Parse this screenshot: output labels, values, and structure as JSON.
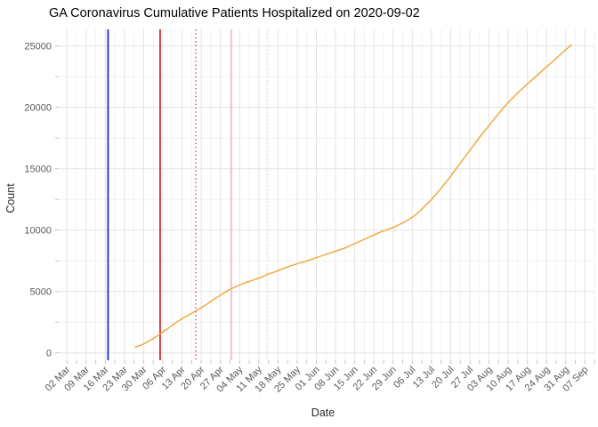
{
  "chart_data": {
    "type": "line",
    "title": "GA Coronavirus Cumulative Patients Hospitalized on 2020-09-02",
    "xlabel": "Date",
    "ylabel": "Count",
    "background_color": "#FFFFFF",
    "grid": {
      "on": true,
      "major_color": "#E3E3E3",
      "minor_color": "#F0F0F0"
    },
    "tick_mark_color": "#C4C4C4",
    "axis_text_color": "#595959",
    "legend": false,
    "ylim": [
      0,
      26300
    ],
    "y_ticks": [
      0,
      5000,
      10000,
      15000,
      20000,
      25000
    ],
    "y_minor_ticks": [
      2500,
      7500,
      12500,
      17500,
      22500
    ],
    "x_ticks": [
      {
        "date": "2020-03-02",
        "label": "02 Mar"
      },
      {
        "date": "2020-03-09",
        "label": "09 Mar"
      },
      {
        "date": "2020-03-16",
        "label": "16 Mar"
      },
      {
        "date": "2020-03-23",
        "label": "23 Mar"
      },
      {
        "date": "2020-03-30",
        "label": "30 Mar"
      },
      {
        "date": "2020-04-06",
        "label": "06 Apr"
      },
      {
        "date": "2020-04-13",
        "label": "13 Apr"
      },
      {
        "date": "2020-04-20",
        "label": "20 Apr"
      },
      {
        "date": "2020-04-27",
        "label": "27 Apr"
      },
      {
        "date": "2020-05-04",
        "label": "04 May"
      },
      {
        "date": "2020-05-11",
        "label": "11 May"
      },
      {
        "date": "2020-05-18",
        "label": "18 May"
      },
      {
        "date": "2020-05-25",
        "label": "25 May"
      },
      {
        "date": "2020-06-01",
        "label": "01 Jun"
      },
      {
        "date": "2020-06-08",
        "label": "08 Jun"
      },
      {
        "date": "2020-06-15",
        "label": "15 Jun"
      },
      {
        "date": "2020-06-22",
        "label": "22 Jun"
      },
      {
        "date": "2020-06-29",
        "label": "29 Jun"
      },
      {
        "date": "2020-07-06",
        "label": "06 Jul"
      },
      {
        "date": "2020-07-13",
        "label": "13 Jul"
      },
      {
        "date": "2020-07-20",
        "label": "20 Jul"
      },
      {
        "date": "2020-07-27",
        "label": "27 Jul"
      },
      {
        "date": "2020-08-03",
        "label": "03 Aug"
      },
      {
        "date": "2020-08-10",
        "label": "10 Aug"
      },
      {
        "date": "2020-08-17",
        "label": "17 Aug"
      },
      {
        "date": "2020-08-24",
        "label": "24 Aug"
      },
      {
        "date": "2020-08-31",
        "label": "31 Aug"
      },
      {
        "date": "2020-09-07",
        "label": "07 Sep"
      }
    ],
    "vlines": [
      {
        "date": "2020-03-17",
        "color": "#1C1CC8",
        "style": "solid",
        "name": "event-line-blue"
      },
      {
        "date": "2020-04-05",
        "color": "#CC2222",
        "style": "solid",
        "name": "event-line-red"
      },
      {
        "date": "2020-04-18",
        "color": "#CC3333",
        "style": "dotted",
        "name": "event-line-red-dotted"
      },
      {
        "date": "2020-05-01",
        "color": "#F5BCC8",
        "style": "solid",
        "name": "event-line-pink"
      },
      {
        "date": "2020-05-14",
        "color": "#F8CCD6",
        "style": "dotted",
        "name": "event-line-pink-dotted"
      }
    ],
    "series": [
      {
        "name": "cumulative-hospitalized",
        "color": "#F0A434",
        "points": [
          [
            "2020-03-27",
            470
          ],
          [
            "2020-03-29",
            620
          ],
          [
            "2020-03-31",
            860
          ],
          [
            "2020-04-02",
            1100
          ],
          [
            "2020-04-04",
            1390
          ],
          [
            "2020-04-06",
            1700
          ],
          [
            "2020-04-08",
            2010
          ],
          [
            "2020-04-10",
            2350
          ],
          [
            "2020-04-12",
            2650
          ],
          [
            "2020-04-14",
            2930
          ],
          [
            "2020-04-16",
            3160
          ],
          [
            "2020-04-18",
            3420
          ],
          [
            "2020-04-20",
            3690
          ],
          [
            "2020-04-22",
            3960
          ],
          [
            "2020-04-24",
            4280
          ],
          [
            "2020-04-26",
            4560
          ],
          [
            "2020-04-28",
            4840
          ],
          [
            "2020-04-30",
            5120
          ],
          [
            "2020-05-02",
            5330
          ],
          [
            "2020-05-04",
            5530
          ],
          [
            "2020-05-06",
            5710
          ],
          [
            "2020-05-08",
            5860
          ],
          [
            "2020-05-10",
            6020
          ],
          [
            "2020-05-12",
            6170
          ],
          [
            "2020-05-14",
            6390
          ],
          [
            "2020-05-16",
            6530
          ],
          [
            "2020-05-18",
            6700
          ],
          [
            "2020-05-20",
            6880
          ],
          [
            "2020-05-22",
            7040
          ],
          [
            "2020-05-24",
            7190
          ],
          [
            "2020-05-26",
            7330
          ],
          [
            "2020-05-28",
            7460
          ],
          [
            "2020-05-30",
            7600
          ],
          [
            "2020-06-01",
            7760
          ],
          [
            "2020-06-03",
            7910
          ],
          [
            "2020-06-05",
            8060
          ],
          [
            "2020-06-07",
            8210
          ],
          [
            "2020-06-09",
            8360
          ],
          [
            "2020-06-11",
            8510
          ],
          [
            "2020-06-13",
            8700
          ],
          [
            "2020-06-15",
            8900
          ],
          [
            "2020-06-17",
            9100
          ],
          [
            "2020-06-19",
            9310
          ],
          [
            "2020-06-21",
            9510
          ],
          [
            "2020-06-23",
            9710
          ],
          [
            "2020-06-25",
            9900
          ],
          [
            "2020-06-27",
            10060
          ],
          [
            "2020-06-29",
            10220
          ],
          [
            "2020-07-01",
            10420
          ],
          [
            "2020-07-03",
            10650
          ],
          [
            "2020-07-05",
            10900
          ],
          [
            "2020-07-07",
            11200
          ],
          [
            "2020-07-09",
            11600
          ],
          [
            "2020-07-11",
            12050
          ],
          [
            "2020-07-13",
            12500
          ],
          [
            "2020-07-15",
            13000
          ],
          [
            "2020-07-17",
            13550
          ],
          [
            "2020-07-19",
            14100
          ],
          [
            "2020-07-21",
            14700
          ],
          [
            "2020-07-23",
            15300
          ],
          [
            "2020-07-25",
            15900
          ],
          [
            "2020-07-27",
            16500
          ],
          [
            "2020-07-29",
            17100
          ],
          [
            "2020-07-31",
            17700
          ],
          [
            "2020-08-02",
            18250
          ],
          [
            "2020-08-04",
            18800
          ],
          [
            "2020-08-06",
            19350
          ],
          [
            "2020-08-08",
            19900
          ],
          [
            "2020-08-10",
            20400
          ],
          [
            "2020-08-12",
            20850
          ],
          [
            "2020-08-14",
            21300
          ],
          [
            "2020-08-16",
            21700
          ],
          [
            "2020-08-18",
            22100
          ],
          [
            "2020-08-20",
            22500
          ],
          [
            "2020-08-22",
            22900
          ],
          [
            "2020-08-24",
            23300
          ],
          [
            "2020-08-26",
            23700
          ],
          [
            "2020-08-28",
            24100
          ],
          [
            "2020-08-30",
            24500
          ],
          [
            "2020-09-01",
            24900
          ],
          [
            "2020-09-02",
            25080
          ]
        ]
      }
    ]
  }
}
